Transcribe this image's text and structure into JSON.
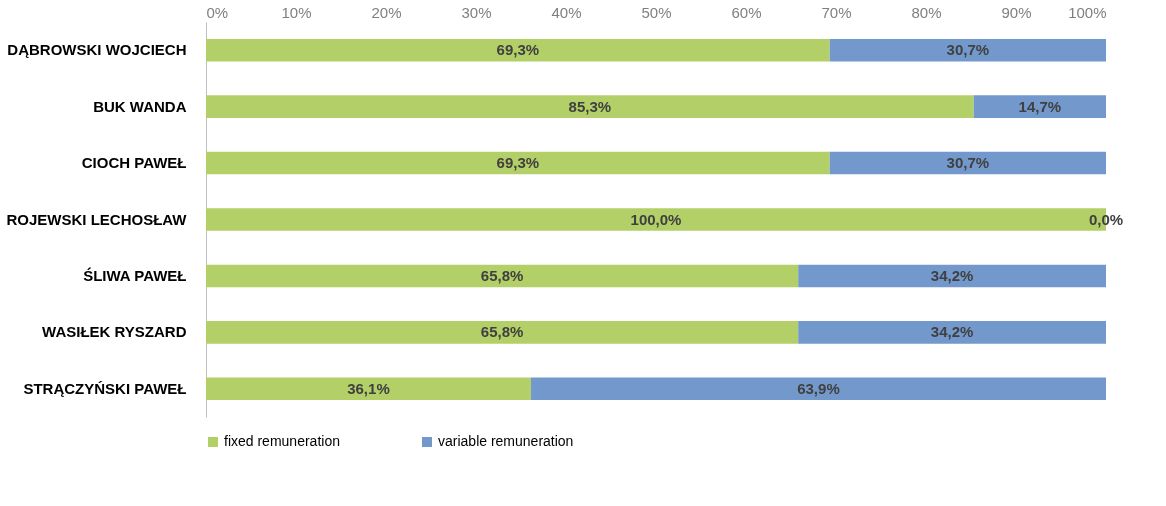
{
  "chart_data": {
    "type": "bar",
    "orientation": "horizontal",
    "stacked": true,
    "categories": [
      "DĄBROWSKI WOJCIECH",
      "BUK WANDA",
      "CIOCH PAWEŁ",
      "ROJEWSKI LECHOSŁAW",
      "ŚLIWA PAWEŁ",
      "WASIŁEK RYSZARD",
      "STRĄCZYŃSKI PAWEŁ"
    ],
    "series": [
      {
        "name": "fixed remuneration",
        "color": "#b3cf67",
        "values": [
          69.3,
          85.3,
          69.3,
          100.0,
          65.8,
          65.8,
          36.1
        ],
        "value_labels": [
          "69,3%",
          "85,3%",
          "69,3%",
          "100,0%",
          "65,8%",
          "65,8%",
          "36,1%"
        ]
      },
      {
        "name": "variable  remuneration",
        "color": "#7399cc",
        "values": [
          30.7,
          14.7,
          30.7,
          0.0,
          34.2,
          34.2,
          63.9
        ],
        "value_labels": [
          "30,7%",
          "14,7%",
          "30,7%",
          "0,0%",
          "34,2%",
          "34,2%",
          "63,9%"
        ]
      }
    ],
    "xlim": [
      0,
      100
    ],
    "xticks": [
      {
        "value": 0,
        "label": "0%"
      },
      {
        "value": 10,
        "label": "10%"
      },
      {
        "value": 20,
        "label": "20%"
      },
      {
        "value": 30,
        "label": "30%"
      },
      {
        "value": 40,
        "label": "40%"
      },
      {
        "value": 50,
        "label": "50%"
      },
      {
        "value": 60,
        "label": "60%"
      },
      {
        "value": 70,
        "label": "70%"
      },
      {
        "value": 80,
        "label": "80%"
      },
      {
        "value": 90,
        "label": "90%"
      },
      {
        "value": 100,
        "label": "100%"
      }
    ],
    "grid": false,
    "legend": "bottom"
  }
}
